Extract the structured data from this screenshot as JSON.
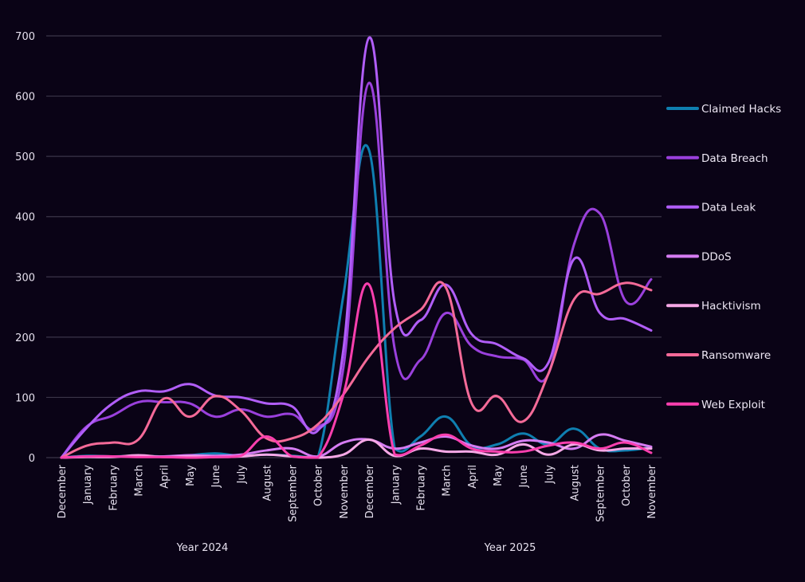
{
  "chart_data": {
    "type": "line",
    "title": "",
    "xlabel": "",
    "ylabel": "",
    "ylim": [
      0,
      700
    ],
    "yticks": [
      0,
      100,
      200,
      300,
      400,
      500,
      600,
      700
    ],
    "grid": true,
    "legend_position": "right",
    "categories": [
      "December",
      "January",
      "February",
      "March",
      "April",
      "May",
      "June",
      "July",
      "August",
      "September",
      "October",
      "November",
      "December",
      "January",
      "February",
      "March",
      "April",
      "May",
      "June",
      "July",
      "August",
      "September",
      "October",
      "November"
    ],
    "groups": [
      {
        "label": "Year 2024",
        "from": 0,
        "to": 11
      },
      {
        "label": "Year 2025",
        "from": 12,
        "to": 23
      }
    ],
    "series": [
      {
        "name": "Claimed Hacks",
        "color": "#0f7fb0",
        "values": [
          0,
          3,
          2,
          3,
          2,
          4,
          7,
          3,
          5,
          3,
          0,
          270,
          510,
          15,
          35,
          68,
          20,
          22,
          40,
          22,
          48,
          15,
          12,
          17
        ]
      },
      {
        "name": "Data Breach",
        "color": "#9a40dc",
        "values": [
          0,
          52,
          70,
          92,
          92,
          90,
          68,
          80,
          68,
          72,
          50,
          150,
          622,
          180,
          162,
          240,
          185,
          168,
          163,
          140,
          355,
          405,
          260,
          296
        ]
      },
      {
        "name": "Data Leak",
        "color": "#b15ef8",
        "values": [
          0,
          50,
          90,
          110,
          110,
          122,
          103,
          100,
          90,
          85,
          45,
          180,
          697,
          255,
          228,
          287,
          205,
          188,
          165,
          158,
          330,
          240,
          230,
          211
        ]
      },
      {
        "name": "DDoS",
        "color": "#d57cf2",
        "values": [
          0,
          2,
          2,
          2,
          2,
          4,
          3,
          5,
          12,
          15,
          2,
          25,
          30,
          15,
          25,
          35,
          20,
          15,
          28,
          25,
          15,
          38,
          28,
          18
        ]
      },
      {
        "name": "Hacktivism",
        "color": "#f6a8e6",
        "values": [
          0,
          1,
          1,
          4,
          1,
          2,
          1,
          2,
          5,
          2,
          0,
          5,
          30,
          3,
          15,
          10,
          10,
          5,
          22,
          5,
          22,
          12,
          15,
          15
        ]
      },
      {
        "name": "Ransomware",
        "color": "#f46a98",
        "values": [
          0,
          20,
          25,
          30,
          98,
          68,
          102,
          78,
          32,
          32,
          55,
          105,
          168,
          215,
          245,
          282,
          90,
          102,
          60,
          140,
          263,
          272,
          290,
          278
        ]
      },
      {
        "name": "Web Exploit",
        "color": "#fb3fae",
        "values": [
          0,
          2,
          2,
          1,
          1,
          0,
          1,
          3,
          35,
          2,
          0,
          105,
          287,
          5,
          20,
          38,
          15,
          10,
          10,
          20,
          25,
          15,
          25,
          8
        ]
      }
    ]
  }
}
